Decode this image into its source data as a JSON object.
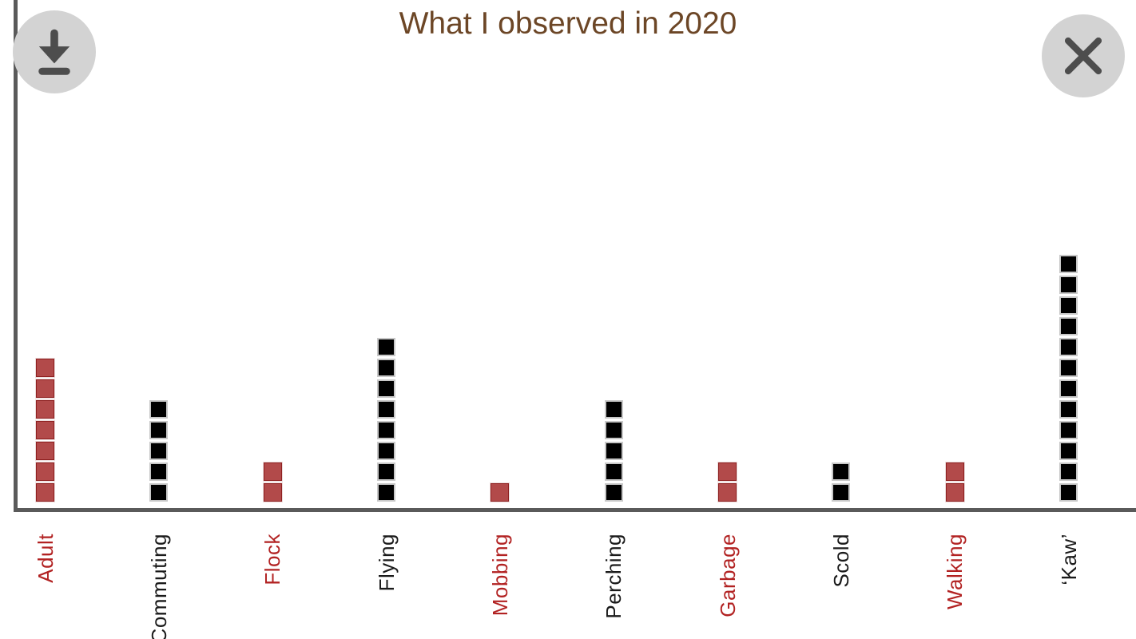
{
  "chart_data": {
    "type": "bar",
    "variant": "unit_square_stack",
    "title": "What I observed in 2020",
    "orientation": "vertical",
    "categories": [
      "Adult",
      "Commuting",
      "Flock",
      "Flying",
      "Mobbing",
      "Perching",
      "Garbage",
      "Scold",
      "Walking",
      "‘Kaw’"
    ],
    "values": [
      7,
      5,
      2,
      8,
      1,
      5,
      2,
      2,
      2,
      12
    ],
    "series_colors": [
      "maroon",
      "black",
      "maroon",
      "black",
      "maroon",
      "black",
      "maroon",
      "black",
      "maroon",
      "black"
    ],
    "unit_value": 1,
    "xlabel": "",
    "ylabel": "",
    "grid": false,
    "legend": false,
    "tick_label_rotation": 90
  },
  "controls": {
    "download_button": {
      "icon": "download-icon"
    },
    "close_button": {
      "icon": "close-icon"
    }
  },
  "colors": {
    "maroon_fill": "#b24a4a",
    "maroon_edge": "#8e1f1f",
    "maroon_label": "#b22222",
    "black_fill": "#000000",
    "black_edge": "#c8c8c8",
    "black_label": "#1a1a1a",
    "axis": "#5a5a5a",
    "title": "#6c4626",
    "button_bg": "#d3d3d3",
    "button_icon": "#4d4d4d",
    "background": "#ffffff"
  }
}
